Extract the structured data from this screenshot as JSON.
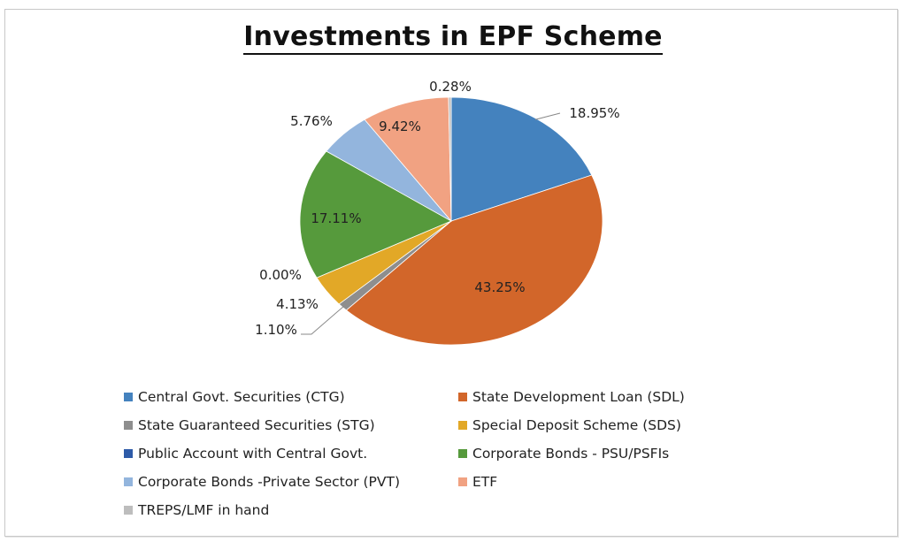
{
  "chart_data": {
    "type": "pie",
    "title": "Investments in EPF Scheme",
    "categories": [
      "Central Govt. Securities (CTG)",
      "State Development Loan (SDL)",
      "State Guaranteed Securities (STG)",
      "Special Deposit Scheme (SDS)",
      "Public Account with Central Govt.",
      "Corporate Bonds - PSU/PSFIs",
      "Corporate Bonds -Private Sector (PVT)",
      "ETF",
      "TREPS/LMF in hand"
    ],
    "values": [
      18.95,
      43.25,
      1.1,
      4.13,
      0.0,
      17.11,
      5.76,
      9.42,
      0.28
    ],
    "data_labels": [
      "18.95%",
      "43.25%",
      "1.10%",
      "4.13%",
      "0.00%",
      "17.11%",
      "5.76%",
      "9.42%",
      "0.28%"
    ],
    "colors": [
      "#4482BE",
      "#D2662A",
      "#8E8E8E",
      "#E2A827",
      "#2E5BA8",
      "#569A3C",
      "#93B5DD",
      "#F1A282",
      "#BDBDBD"
    ],
    "legend_position": "bottom",
    "start_angle": "12 o'clock, clockwise"
  },
  "title": "Investments in EPF Scheme",
  "legend": [
    {
      "label": "Central Govt. Securities (CTG)",
      "color": "#4482BE"
    },
    {
      "label": "State Development Loan (SDL)",
      "color": "#D2662A"
    },
    {
      "label": "State Guaranteed Securities (STG)",
      "color": "#8E8E8E"
    },
    {
      "label": "Special Deposit Scheme (SDS)",
      "color": "#E2A827"
    },
    {
      "label": "Public Account with Central Govt.",
      "color": "#2E5BA8"
    },
    {
      "label": "Corporate Bonds - PSU/PSFIs",
      "color": "#569A3C"
    },
    {
      "label": "Corporate Bonds -Private Sector (PVT)",
      "color": "#93B5DD"
    },
    {
      "label": "ETF",
      "color": "#F1A282"
    },
    {
      "label": "TREPS/LMF in hand",
      "color": "#BDBDBD"
    }
  ]
}
